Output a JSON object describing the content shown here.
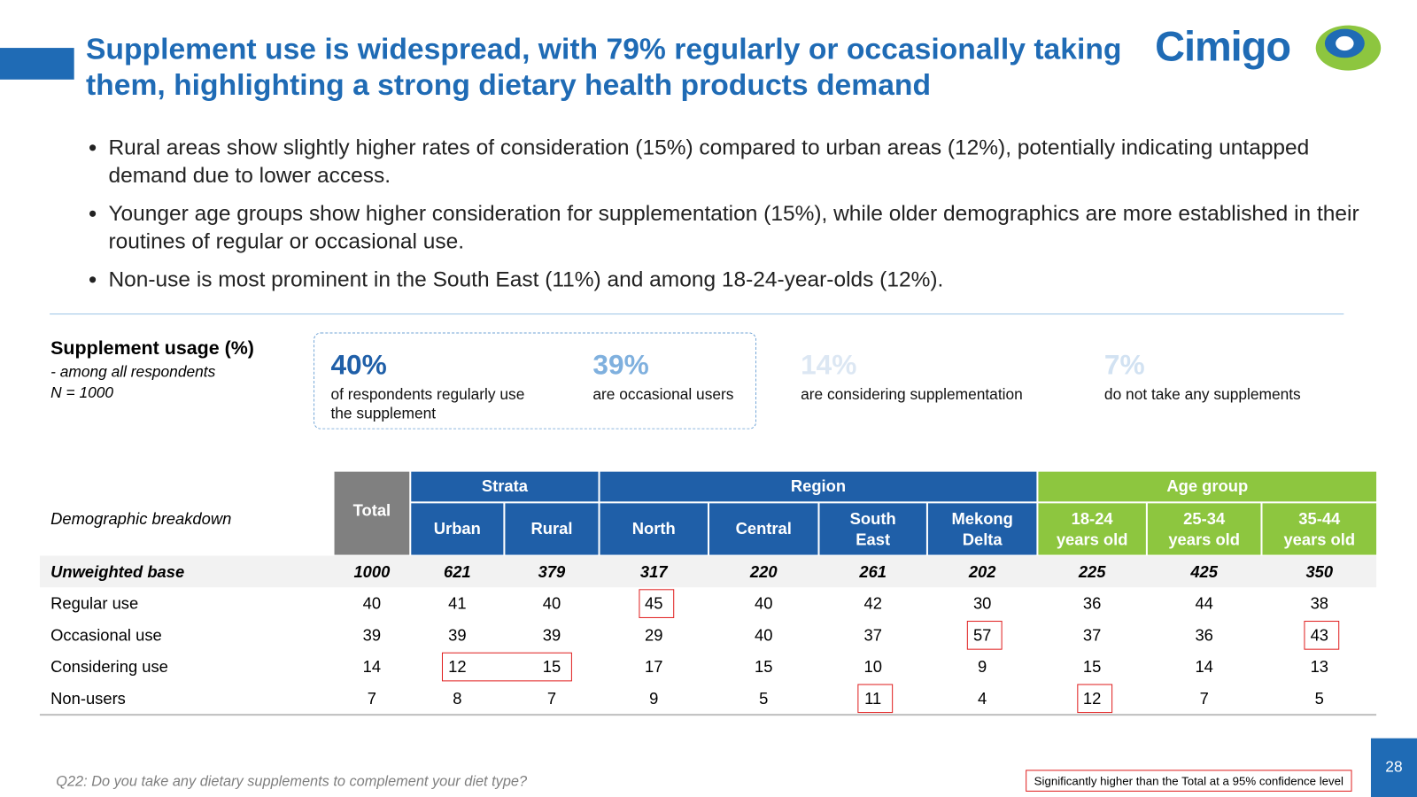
{
  "header": {
    "title": "Supplement use is widespread, with 79% regularly or occasionally taking them, highlighting a strong dietary health products demand",
    "logo": "Cimigo"
  },
  "bullets": [
    "Rural areas show slightly higher rates of consideration (15%) compared to urban areas (12%), potentially indicating untapped demand due to lower access.",
    "Younger age groups show higher consideration for supplementation (15%), while older demographics are more established in their routines of regular or occasional use.",
    "Non-use is most prominent in the South East (11%) and among 18-24-year-olds (12%)."
  ],
  "summary": {
    "title": "Supplement usage (%)",
    "subtitle": "- among all respondents",
    "base": "N = 1000",
    "stats": [
      {
        "value": "40%",
        "label": "of respondents regularly use the supplement",
        "color": "#1f5fa8"
      },
      {
        "value": "39%",
        "label": "are occasional users",
        "color": "#7fb0de"
      },
      {
        "value": "14%",
        "label": "are considering supplementation",
        "color": "#dce7f3"
      },
      {
        "value": "7%",
        "label": "do not take any supplements",
        "color": "#d2e2f2"
      }
    ]
  },
  "table": {
    "corner": "Demographic breakdown",
    "total": "Total",
    "groups": [
      {
        "label": "Strata",
        "color": "#1f5fa8",
        "columns": [
          "Urban",
          "Rural"
        ]
      },
      {
        "label": "Region",
        "color": "#1f5fa8",
        "columns": [
          "North",
          "Central",
          "South East",
          "Mekong Delta"
        ]
      },
      {
        "label": "Age group",
        "color": "#8dc63f",
        "columns": [
          "18-24 years old",
          "25-34 years old",
          "35-44 years old"
        ]
      }
    ],
    "rows": [
      {
        "label": "Unweighted base",
        "values": [
          1000,
          621,
          379,
          317,
          220,
          261,
          202,
          225,
          425,
          350
        ]
      },
      {
        "label": "Regular use",
        "values": [
          40,
          41,
          40,
          45,
          40,
          42,
          30,
          36,
          44,
          38
        ],
        "significant": [
          false,
          false,
          false,
          true,
          false,
          false,
          false,
          false,
          false,
          false
        ]
      },
      {
        "label": "Occasional use",
        "values": [
          39,
          39,
          39,
          29,
          40,
          37,
          57,
          37,
          36,
          43
        ],
        "significant": [
          false,
          false,
          false,
          false,
          false,
          false,
          true,
          false,
          false,
          true
        ]
      },
      {
        "label": "Considering use",
        "values": [
          14,
          12,
          15,
          17,
          15,
          10,
          9,
          15,
          14,
          13
        ],
        "significant": [
          false,
          true,
          true,
          false,
          false,
          false,
          false,
          false,
          false,
          false
        ]
      },
      {
        "label": "Non-users",
        "values": [
          7,
          8,
          7,
          9,
          5,
          11,
          4,
          12,
          7,
          5
        ],
        "significant": [
          false,
          false,
          false,
          false,
          false,
          true,
          false,
          true,
          false,
          false
        ]
      }
    ]
  },
  "footnote": "Q22: Do you take any dietary supplements to complement your diet type?",
  "legend": "Significantly higher than the Total at a 95% confidence level",
  "page_number": "28"
}
